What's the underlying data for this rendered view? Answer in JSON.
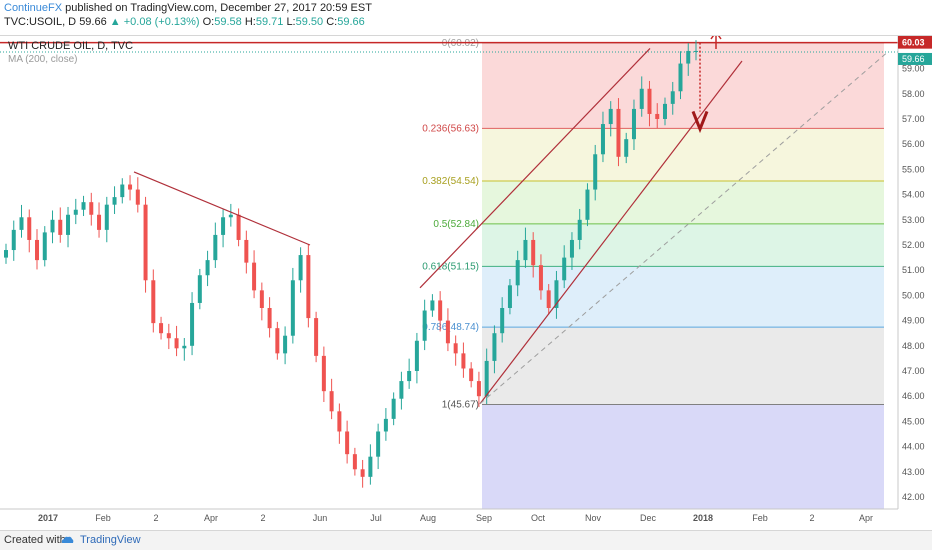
{
  "header": {
    "author": "ContinueFX",
    "published_text": " published on TradingView.com, December 27, 2017 20:59 EST",
    "symbol": "TVC:USOIL, D",
    "last": "59.66",
    "change": "▲ +0.08 (+0.13%)",
    "open_label": "O:",
    "open": "59.58",
    "high_label": "H:",
    "high": "59.71",
    "low_label": "L:",
    "low": "59.50",
    "close_label": "C:",
    "close": "59.66"
  },
  "legend": {
    "title": "WTI CRUDE OIL, D, TVC",
    "ma": "MA (200, close)"
  },
  "footer": {
    "created_with": "Created with",
    "brand": "TradingView"
  },
  "colors": {
    "up": "#26a69a",
    "down": "#ef5350",
    "trendline": "#b0303a",
    "price_tag": "#c62828",
    "last_tag": "#26a69a"
  },
  "chart_data": {
    "type": "candlestick",
    "title": "WTI CRUDE OIL, D, TVC",
    "ylim": [
      41.5,
      60.5
    ],
    "y_ticks": [
      "42.00",
      "43.00",
      "44.00",
      "45.00",
      "46.00",
      "47.00",
      "48.00",
      "49.00",
      "50.00",
      "51.00",
      "52.00",
      "53.00",
      "54.00",
      "55.00",
      "56.00",
      "57.00",
      "58.00",
      "59.00"
    ],
    "x_tick_labels": [
      "2017",
      "Feb",
      "2",
      "Apr",
      "2",
      "Jun",
      "Jul",
      "Aug",
      "Sep",
      "Oct",
      "Nov",
      "Dec",
      "2018",
      "Feb",
      "2",
      "Apr"
    ],
    "price_labels": {
      "resistance": "60.03",
      "last": "59.66"
    },
    "fibonacci": [
      {
        "label": "0(60.02)",
        "value": 60.02
      },
      {
        "label": "0.236(56.63)",
        "value": 56.63
      },
      {
        "label": "0.382(54.54)",
        "value": 54.54
      },
      {
        "label": "0.5(52.84)",
        "value": 52.84
      },
      {
        "label": "0.618(51.15)",
        "value": 51.15
      },
      {
        "label": "0.786(48.74)",
        "value": 48.74
      },
      {
        "label": "1(45.67)",
        "value": 45.67
      }
    ],
    "close_series": [
      51.8,
      52.6,
      53.1,
      52.2,
      51.4,
      52.5,
      53.0,
      52.4,
      53.2,
      53.4,
      53.7,
      53.2,
      52.6,
      53.6,
      53.9,
      54.4,
      54.2,
      53.6,
      50.6,
      48.9,
      48.5,
      48.3,
      47.9,
      48.0,
      49.7,
      50.8,
      51.4,
      52.4,
      53.1,
      53.2,
      52.2,
      51.3,
      50.2,
      49.5,
      48.7,
      47.7,
      48.4,
      50.6,
      51.6,
      49.1,
      47.6,
      46.2,
      45.4,
      44.6,
      43.7,
      43.1,
      42.8,
      43.6,
      44.6,
      45.1,
      45.9,
      46.6,
      47.0,
      48.2,
      49.4,
      49.8,
      49.0,
      48.1,
      47.7,
      47.1,
      46.6,
      46.0,
      47.4,
      48.5,
      49.5,
      50.4,
      51.4,
      52.2,
      51.2,
      50.2,
      49.5,
      50.6,
      51.5,
      52.2,
      53.0,
      54.2,
      55.6,
      56.8,
      57.4,
      55.5,
      56.2,
      57.4,
      58.2,
      57.2,
      57.0,
      57.6,
      58.1,
      59.2,
      59.7,
      59.7
    ]
  }
}
